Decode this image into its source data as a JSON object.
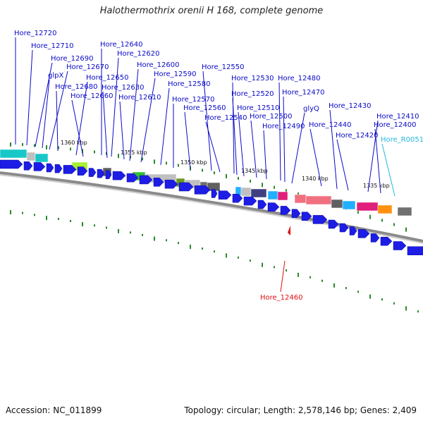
{
  "title": "Halothermothrix orenii H 168, complete genome",
  "accession": "Accession: NC_011899",
  "topology": "Topology: circular; Length: 2,578,146 bp; Genes: 2,409",
  "colors": {
    "gene_arrow": "#1d1de6",
    "backbone": "#8a8a8a",
    "tick": "#2a8a2a",
    "label": "#0a0ac8",
    "rna_label": "#22b8e0",
    "marker": "#e01010"
  },
  "scale_labels": [
    "1360 kbp",
    "1355 kbp",
    "1350 kbp",
    "1345 kbp",
    "1340 kbp",
    "1335 kbp"
  ],
  "gene_labels": [
    "Hore_12720",
    "Hore_12710",
    "Hore_12690",
    "glpX",
    "Hore_12670",
    "Hore_12680",
    "Hore_12650",
    "Hore_12660",
    "Hore_12640",
    "Hore_12620",
    "Hore_12630",
    "Hore_12610",
    "Hore_12600",
    "Hore_12590",
    "Hore_12580",
    "Hore_12570",
    "Hore_12560",
    "Hore_12550",
    "Hore_12540",
    "Hore_12530",
    "Hore_12520",
    "Hore_12510",
    "Hore_12500",
    "Hore_12490",
    "Hore_12480",
    "Hore_12470",
    "glyQ",
    "Hore_12440",
    "Hore_12430",
    "Hore_12420",
    "Hore_12410",
    "Hore_12400",
    "Hore_R0051"
  ],
  "marker_label": "Hore_12460"
}
